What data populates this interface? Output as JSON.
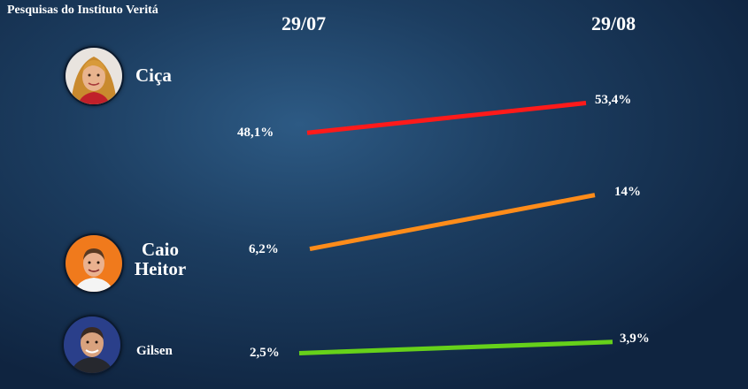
{
  "header": {
    "title": "Pesquisas do Instituto Veritá"
  },
  "chart_data": {
    "type": "line",
    "title": "Pesquisas do Instituto Veritá",
    "x": [
      "29/07",
      "29/08"
    ],
    "series": [
      {
        "name": "Ciça",
        "values": [
          48.1,
          53.4
        ],
        "labels": [
          "48,1%",
          "53,4%"
        ],
        "color": "#ff1a1a"
      },
      {
        "name": "Caio Heitor",
        "values": [
          6.2,
          14
        ],
        "labels": [
          "6,2%",
          "14%"
        ],
        "color": "#ff8c1a"
      },
      {
        "name": "Gilsen",
        "values": [
          2.5,
          3.9
        ],
        "labels": [
          "2,5%",
          "3,9%"
        ],
        "color": "#66d11a"
      }
    ],
    "grid": false,
    "legend": "left"
  },
  "candidates": [
    {
      "name": "Ciça",
      "avatar_icon": "woman-portrait-icon"
    },
    {
      "name_line1": "Caio",
      "name_line2": "Heitor",
      "avatar_icon": "young-man-portrait-icon"
    },
    {
      "name": "Gilsen",
      "avatar_icon": "man-portrait-icon"
    }
  ]
}
